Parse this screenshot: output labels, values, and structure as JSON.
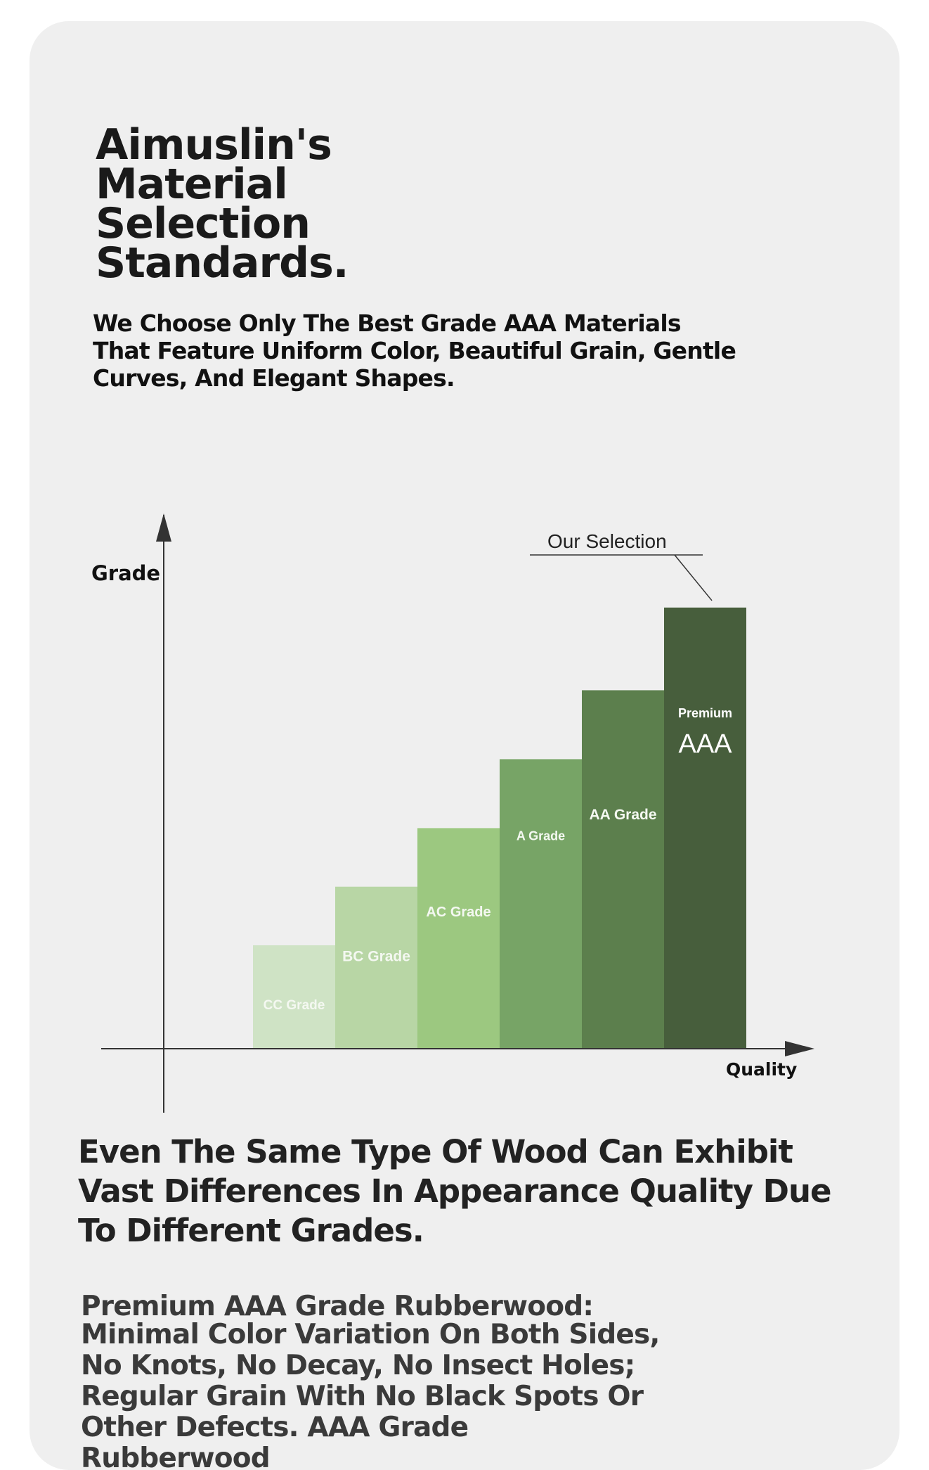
{
  "title_lines": [
    "Aimuslin's",
    "Material",
    "Selection",
    "Standards."
  ],
  "subtitle_lines": [
    "We Choose Only The Best Grade AAA Materials",
    "That Feature Uniform Color, Beautiful Grain, Gentle",
    "Curves, And Elegant Shapes."
  ],
  "chart_data": {
    "type": "bar",
    "ylabel": "Grade",
    "xlabel": "Quality",
    "categories": [
      "CC Grade",
      "BC Grade",
      "AC Grade",
      "A Grade",
      "AA Grade",
      "AAA"
    ],
    "values": [
      1.5,
      2.35,
      3.2,
      4.2,
      5.2,
      6.4
    ],
    "premium_label": "Premium",
    "annotation": "Our Selection",
    "colors": [
      "#cfe3c5",
      "#b8d6a5",
      "#9cc880",
      "#77a466",
      "#5c7f4d",
      "#475e3c"
    ],
    "ylim": [
      0,
      7.5
    ],
    "grid": false,
    "legend": "none"
  },
  "section_heading_lines": [
    "Even The Same Type Of Wood Can Exhibit",
    "Vast Differences In Appearance Quality Due",
    "To Different Grades."
  ],
  "description_lines": [
    "Premium AAA Grade Rubberwood:",
    "Minimal Color Variation On Both Sides,",
    "No Knots, No Decay, No Insect Holes;",
    "Regular Grain With No Black Spots Or",
    "Other Defects. AAA Grade",
    "Rubberwood"
  ]
}
